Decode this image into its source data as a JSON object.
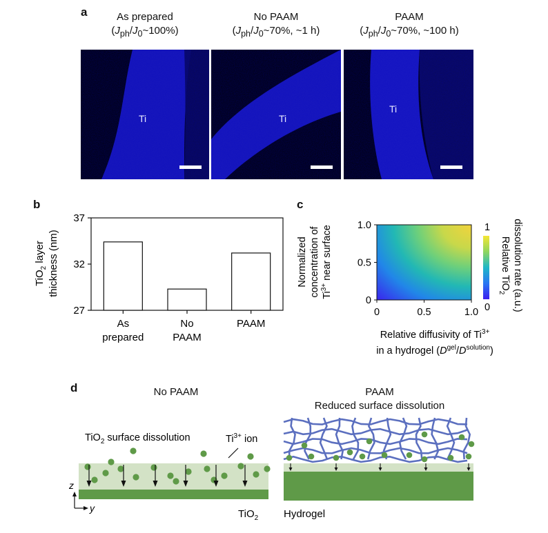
{
  "panel_a": {
    "letter": "a",
    "images": [
      {
        "title": "As prepared",
        "subtitle": "(Jph/J0~100%)",
        "label": "Ti"
      },
      {
        "title": "No PAAM",
        "subtitle": "(Jph/J0~70%, ~1 h)",
        "label": "Ti"
      },
      {
        "title": "PAAM",
        "subtitle": "(Jph/J0~70%, ~100 h)",
        "label": "Ti"
      }
    ]
  },
  "panel_b": {
    "letter": "b",
    "ylabel_line1": "TiO2 layer",
    "ylabel_line2": "thickness (nm)"
  },
  "panel_c": {
    "letter": "c",
    "ylabel_lines": [
      "Normalized",
      "concentration of",
      "Ti3+ near surface"
    ],
    "xlabel_line1": "Relative diffusivity of Ti3+",
    "xlabel_line2": "in a hydrogel (Dgel/Dsolution)",
    "xticks": [
      "0",
      "0.5",
      "1.0"
    ],
    "yticks": [
      "0",
      "0.5",
      "1.0"
    ],
    "colorbar_ticks": [
      "1",
      "0"
    ],
    "colorbar_label_line1": "Relative TiO2",
    "colorbar_label_line2": "dissolution rate (a.u.)"
  },
  "panel_d": {
    "letter": "d",
    "left_title": "No PAAM",
    "right_title_line1": "PAAM",
    "right_title_line2": "Reduced surface dissolution",
    "dissolution_label": "TiO2 surface dissolution",
    "ion_label": "Ti3+ ion",
    "axis_z": "z",
    "axis_y": "y",
    "substrate_label": "TiO2",
    "hydrogel_label": "Hydrogel"
  },
  "chart_data": [
    {
      "type": "bar",
      "categories": [
        "As prepared",
        "No PAAM",
        "PAAM"
      ],
      "values": [
        34.4,
        29.3,
        33.2
      ],
      "ylabel": "TiO2 layer thickness (nm)",
      "ylim": [
        27,
        37
      ],
      "yticks": [
        27,
        32,
        37
      ]
    },
    {
      "type": "heatmap",
      "xlabel": "Relative diffusivity of Ti3+ in a hydrogel (Dgel/Dsolution)",
      "ylabel": "Normalized concentration of Ti3+ near surface",
      "xlim": [
        0,
        1.0
      ],
      "ylim": [
        0,
        1.0
      ],
      "colorbar_range": [
        0,
        1
      ],
      "colorbar_label": "Relative TiO2 dissolution rate (a.u.)",
      "colormap": [
        "#3b1ef0",
        "#2a67f5",
        "#1ea3e0",
        "#2bc3a6",
        "#8fd65e",
        "#f0e232"
      ]
    }
  ]
}
